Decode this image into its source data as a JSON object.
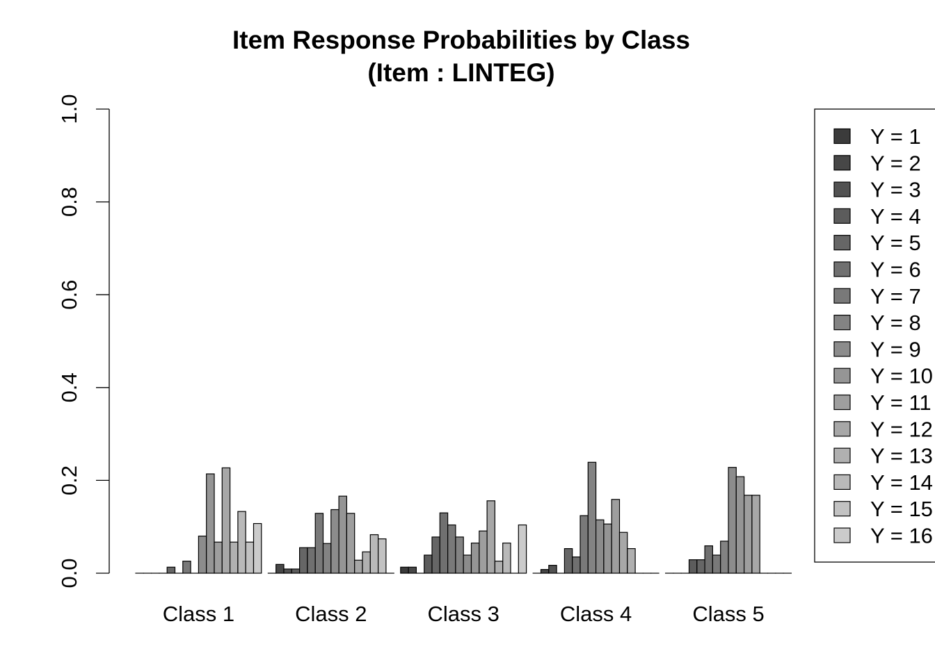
{
  "chart_data": {
    "type": "bar",
    "title": "Item Response Probabilities by Class",
    "subtitle": "(Item : LINTEG)",
    "xlabel": "",
    "ylabel": "",
    "ylim": [
      0,
      1
    ],
    "yticks": [
      "0.0",
      "0.2",
      "0.4",
      "0.6",
      "0.8",
      "1.0"
    ],
    "categories": [
      "Class 1",
      "Class 2",
      "Class 3",
      "Class 4",
      "Class 5"
    ],
    "legend_position": "right",
    "series": [
      {
        "name": "Y = 1",
        "color": "#3b3b3b",
        "values": [
          0.0,
          0.0,
          0.013,
          0.0,
          0.0
        ]
      },
      {
        "name": "Y = 2",
        "color": "#474747",
        "values": [
          0.0,
          0.019,
          0.013,
          0.008,
          0.0
        ]
      },
      {
        "name": "Y = 3",
        "color": "#525252",
        "values": [
          0.0,
          0.009,
          0.0,
          0.017,
          0.0
        ]
      },
      {
        "name": "Y = 4",
        "color": "#5c5c5c",
        "values": [
          0.0,
          0.009,
          0.039,
          0.0,
          0.029
        ]
      },
      {
        "name": "Y = 5",
        "color": "#666666",
        "values": [
          0.013,
          0.055,
          0.078,
          0.053,
          0.029
        ]
      },
      {
        "name": "Y = 6",
        "color": "#707070",
        "values": [
          0.0,
          0.055,
          0.13,
          0.035,
          0.059
        ]
      },
      {
        "name": "Y = 7",
        "color": "#797979",
        "values": [
          0.026,
          0.129,
          0.104,
          0.124,
          0.039
        ]
      },
      {
        "name": "Y = 8",
        "color": "#838383",
        "values": [
          0.0,
          0.064,
          0.078,
          0.239,
          0.069
        ]
      },
      {
        "name": "Y = 9",
        "color": "#8c8c8c",
        "values": [
          0.08,
          0.137,
          0.039,
          0.115,
          0.228
        ]
      },
      {
        "name": "Y = 10",
        "color": "#959595",
        "values": [
          0.214,
          0.166,
          0.065,
          0.106,
          0.208
        ]
      },
      {
        "name": "Y = 11",
        "color": "#9e9e9e",
        "values": [
          0.067,
          0.129,
          0.091,
          0.159,
          0.168
        ]
      },
      {
        "name": "Y = 12",
        "color": "#a7a7a7",
        "values": [
          0.227,
          0.028,
          0.156,
          0.088,
          0.168
        ]
      },
      {
        "name": "Y = 13",
        "color": "#b0b0b0",
        "values": [
          0.067,
          0.046,
          0.026,
          0.053,
          0.0
        ]
      },
      {
        "name": "Y = 14",
        "color": "#b9b9b9",
        "values": [
          0.133,
          0.083,
          0.065,
          0.0,
          0.0
        ]
      },
      {
        "name": "Y = 15",
        "color": "#c2c2c2",
        "values": [
          0.067,
          0.074,
          0.0,
          0.0,
          0.0
        ]
      },
      {
        "name": "Y = 16",
        "color": "#cbcbcb",
        "values": [
          0.107,
          0.0,
          0.104,
          0.0,
          0.0
        ]
      }
    ]
  }
}
